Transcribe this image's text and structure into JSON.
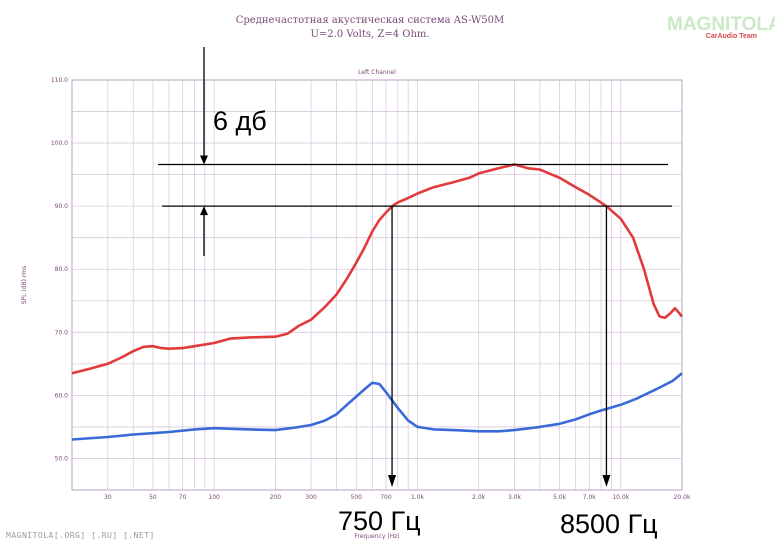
{
  "header": {
    "title": "Среднечастотная акустическая система AS-W50M",
    "subtitle": "U=2.0 Volts, Z=4 Ohm."
  },
  "logo": {
    "name": "MAGNITOLA",
    "team": "CarAudio Team"
  },
  "watermark": "MAGNITOLA[.ORG] [.RU] [.NET]",
  "chart_data": {
    "type": "line",
    "title": "Left Channel",
    "xlabel": "Frequency (Hz)",
    "ylabel": "SPL (dB) rms",
    "xscale": "log",
    "xlim": [
      20,
      20000
    ],
    "ylim": [
      45,
      110
    ],
    "grid": true,
    "x_ticks": [
      {
        "value": 30,
        "label": "30"
      },
      {
        "value": 50,
        "label": "50"
      },
      {
        "value": 70,
        "label": "70"
      },
      {
        "value": 100,
        "label": "100"
      },
      {
        "value": 200,
        "label": "200"
      },
      {
        "value": 300,
        "label": "300"
      },
      {
        "value": 500,
        "label": "500"
      },
      {
        "value": 700,
        "label": "700"
      },
      {
        "value": 1000,
        "label": "1.0k"
      },
      {
        "value": 2000,
        "label": "2.0k"
      },
      {
        "value": 3000,
        "label": "3.0k"
      },
      {
        "value": 5000,
        "label": "5.0k"
      },
      {
        "value": 7000,
        "label": "7.0k"
      },
      {
        "value": 10000,
        "label": "10.0k"
      },
      {
        "value": 20000,
        "label": "20.0k"
      }
    ],
    "y_ticks": [
      {
        "value": 50,
        "label": "50.0"
      },
      {
        "value": 60,
        "label": "60.0"
      },
      {
        "value": 70,
        "label": "70.0"
      },
      {
        "value": 80,
        "label": "80.0"
      },
      {
        "value": 90,
        "label": "90.0"
      },
      {
        "value": 100,
        "label": "100.0"
      },
      {
        "value": 110,
        "label": "110.0"
      }
    ],
    "series": [
      {
        "color": "#e23a3a",
        "points": [
          [
            20,
            63.5
          ],
          [
            25,
            64.3
          ],
          [
            30,
            65.0
          ],
          [
            35,
            66.0
          ],
          [
            40,
            67.0
          ],
          [
            45,
            67.7
          ],
          [
            50,
            67.8
          ],
          [
            55,
            67.5
          ],
          [
            60,
            67.4
          ],
          [
            70,
            67.5
          ],
          [
            80,
            67.8
          ],
          [
            100,
            68.3
          ],
          [
            120,
            69.0
          ],
          [
            150,
            69.2
          ],
          [
            200,
            69.3
          ],
          [
            230,
            69.8
          ],
          [
            260,
            71.0
          ],
          [
            300,
            72.0
          ],
          [
            350,
            74.0
          ],
          [
            400,
            76.0
          ],
          [
            450,
            78.5
          ],
          [
            500,
            81.0
          ],
          [
            550,
            83.5
          ],
          [
            600,
            86.0
          ],
          [
            650,
            87.8
          ],
          [
            700,
            89.0
          ],
          [
            750,
            90.0
          ],
          [
            800,
            90.6
          ],
          [
            900,
            91.3
          ],
          [
            1000,
            92.0
          ],
          [
            1200,
            93.0
          ],
          [
            1500,
            93.8
          ],
          [
            1800,
            94.5
          ],
          [
            2000,
            95.2
          ],
          [
            2500,
            96.0
          ],
          [
            3000,
            96.6
          ],
          [
            3500,
            96.0
          ],
          [
            4000,
            95.8
          ],
          [
            5000,
            94.5
          ],
          [
            6000,
            93.0
          ],
          [
            7000,
            91.8
          ],
          [
            8500,
            90.0
          ],
          [
            10000,
            88.0
          ],
          [
            11500,
            85.0
          ],
          [
            13000,
            80.0
          ],
          [
            14500,
            74.5
          ],
          [
            15500,
            72.5
          ],
          [
            16500,
            72.3
          ],
          [
            17500,
            73.0
          ],
          [
            18500,
            73.8
          ],
          [
            20000,
            72.5
          ]
        ]
      },
      {
        "color": "#3a6ad8",
        "points": [
          [
            20,
            53.0
          ],
          [
            30,
            53.4
          ],
          [
            40,
            53.8
          ],
          [
            50,
            54.0
          ],
          [
            60,
            54.2
          ],
          [
            80,
            54.6
          ],
          [
            100,
            54.8
          ],
          [
            150,
            54.6
          ],
          [
            200,
            54.5
          ],
          [
            250,
            54.9
          ],
          [
            300,
            55.3
          ],
          [
            350,
            56.0
          ],
          [
            400,
            57.0
          ],
          [
            450,
            58.5
          ],
          [
            500,
            59.8
          ],
          [
            550,
            61.0
          ],
          [
            600,
            62.0
          ],
          [
            650,
            61.8
          ],
          [
            700,
            60.5
          ],
          [
            800,
            58.0
          ],
          [
            900,
            56.0
          ],
          [
            1000,
            55.0
          ],
          [
            1200,
            54.6
          ],
          [
            1500,
            54.5
          ],
          [
            2000,
            54.3
          ],
          [
            2500,
            54.3
          ],
          [
            3000,
            54.5
          ],
          [
            4000,
            55.0
          ],
          [
            5000,
            55.5
          ],
          [
            6000,
            56.2
          ],
          [
            7000,
            57.0
          ],
          [
            8000,
            57.6
          ],
          [
            10000,
            58.5
          ],
          [
            12000,
            59.5
          ],
          [
            15000,
            61.0
          ],
          [
            18000,
            62.3
          ],
          [
            20000,
            63.5
          ]
        ]
      }
    ],
    "annotations": {
      "db_label": "6 дб",
      "upper_level_db": 96.6,
      "lower_level_db": 90.0,
      "lower_freq_label": "750 Гц",
      "lower_freq_hz": 750,
      "upper_freq_label": "8500 Гц",
      "upper_freq_hz": 8500
    }
  }
}
